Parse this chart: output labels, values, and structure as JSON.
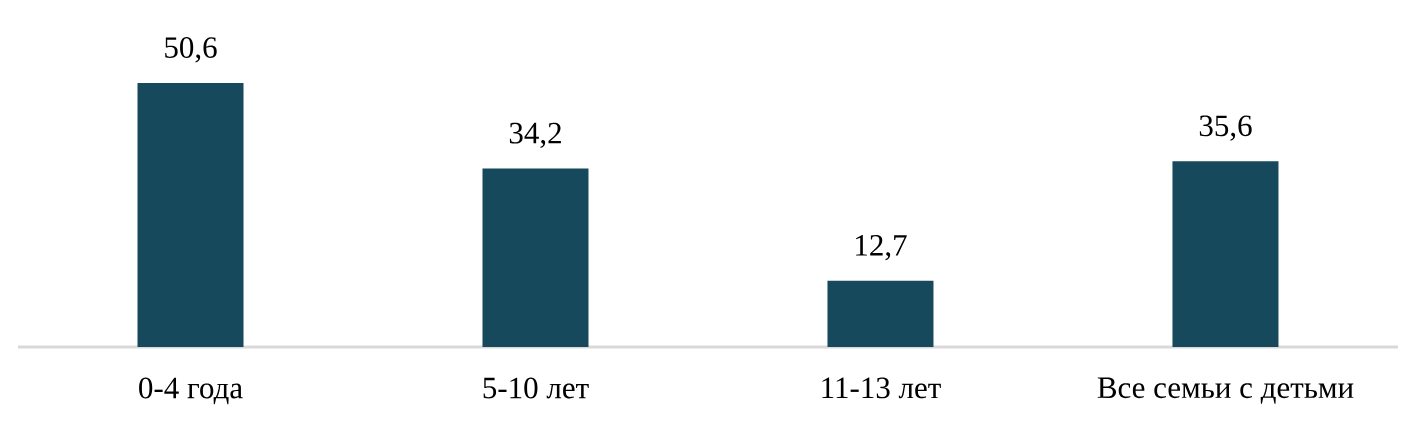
{
  "chart_data": {
    "type": "bar",
    "categories": [
      "0-4 года",
      "5-10 лет",
      "11-13 лет",
      "Все семьи с детьми"
    ],
    "values": [
      50.6,
      34.2,
      12.7,
      35.6
    ],
    "value_labels": [
      "50,6",
      "34,2",
      "12,7",
      "35,6"
    ],
    "color": "#15495b"
  }
}
